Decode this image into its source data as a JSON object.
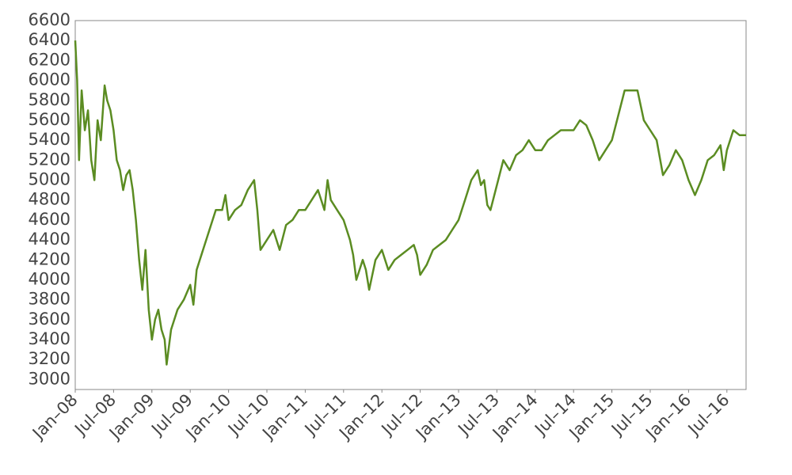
{
  "chart_data": {
    "type": "line",
    "x": [
      0,
      0.3,
      0.6,
      1,
      1.5,
      2,
      2.5,
      3,
      3.5,
      4,
      4.6,
      5,
      5.5,
      6,
      6.5,
      7,
      7.5,
      8,
      8.5,
      9,
      9.5,
      10,
      10.5,
      11,
      11.5,
      12,
      12.5,
      13,
      13.5,
      14,
      14.3,
      15,
      16,
      17,
      18,
      18.5,
      19,
      20,
      21,
      22,
      23,
      23.5,
      24,
      25,
      26,
      27,
      28,
      28.5,
      29,
      30,
      31,
      32,
      33,
      34,
      35,
      36,
      37,
      38,
      38.5,
      39,
      39.5,
      40,
      41,
      42,
      43,
      43.5,
      44,
      45,
      45.5,
      46,
      47,
      48,
      49,
      50,
      51,
      52,
      53,
      53.5,
      54,
      55,
      56,
      57,
      58,
      59,
      60,
      61,
      62,
      63,
      63.5,
      64,
      64.5,
      65,
      66,
      67,
      68,
      69,
      70,
      71,
      72,
      73,
      74,
      75,
      76,
      77,
      78,
      79,
      80,
      81,
      82,
      83,
      84,
      85,
      86,
      87,
      88,
      89,
      90,
      91,
      92,
      93,
      94,
      95,
      96,
      97,
      98,
      99,
      100,
      101,
      101.5,
      102,
      103,
      104,
      105
    ],
    "values": [
      6400,
      6000,
      5200,
      5900,
      5500,
      5700,
      5200,
      5000,
      5600,
      5400,
      5950,
      5800,
      5700,
      5500,
      5200,
      5100,
      4900,
      5050,
      5100,
      4900,
      4600,
      4200,
      3900,
      4300,
      3700,
      3400,
      3600,
      3700,
      3500,
      3400,
      3150,
      3500,
      3700,
      3800,
      3950,
      3750,
      4100,
      4300,
      4500,
      4700,
      4700,
      4850,
      4600,
      4700,
      4750,
      4900,
      5000,
      4700,
      4300,
      4400,
      4500,
      4300,
      4550,
      4600,
      4700,
      4700,
      4800,
      4900,
      4800,
      4700,
      5000,
      4800,
      4700,
      4600,
      4400,
      4250,
      4000,
      4200,
      4100,
      3900,
      4200,
      4300,
      4100,
      4200,
      4250,
      4300,
      4350,
      4250,
      4050,
      4150,
      4300,
      4350,
      4400,
      4500,
      4600,
      4800,
      5000,
      5100,
      4950,
      5000,
      4750,
      4700,
      4950,
      5200,
      5100,
      5250,
      5300,
      5400,
      5300,
      5300,
      5400,
      5450,
      5500,
      5500,
      5500,
      5600,
      5550,
      5400,
      5200,
      5300,
      5400,
      5650,
      5900,
      5900,
      5900,
      5600,
      5500,
      5400,
      5050,
      5150,
      5300,
      5200,
      5000,
      4850,
      5000,
      5200,
      5250,
      5350,
      5100,
      5300,
      5500,
      5450,
      5450
    ],
    "color": "#5b8c22",
    "xlim": [
      0,
      105
    ],
    "xticks": [
      {
        "value": 0,
        "label": "Jan–08"
      },
      {
        "value": 6,
        "label": "Jul–08"
      },
      {
        "value": 12,
        "label": "Jan–09"
      },
      {
        "value": 18,
        "label": "Jul–09"
      },
      {
        "value": 24,
        "label": "Jan–10"
      },
      {
        "value": 30,
        "label": "Jul–10"
      },
      {
        "value": 36,
        "label": "Jan–11"
      },
      {
        "value": 42,
        "label": "Jul–11"
      },
      {
        "value": 48,
        "label": "Jan–12"
      },
      {
        "value": 54,
        "label": "Jul–12"
      },
      {
        "value": 60,
        "label": "Jan–13"
      },
      {
        "value": 66,
        "label": "Jul–13"
      },
      {
        "value": 72,
        "label": "Jan–14"
      },
      {
        "value": 78,
        "label": "Jul–14"
      },
      {
        "value": 84,
        "label": "Jan–15"
      },
      {
        "value": 90,
        "label": "Jul–15"
      },
      {
        "value": 96,
        "label": "Jan–16"
      },
      {
        "value": 102,
        "label": "Jul–16"
      }
    ],
    "ylim": [
      2900,
      6600
    ],
    "yticks": [
      3000,
      3200,
      3400,
      3600,
      3800,
      4000,
      4200,
      4400,
      4600,
      4800,
      5000,
      5200,
      5400,
      5600,
      5800,
      6000,
      6200,
      6400,
      6600
    ]
  }
}
